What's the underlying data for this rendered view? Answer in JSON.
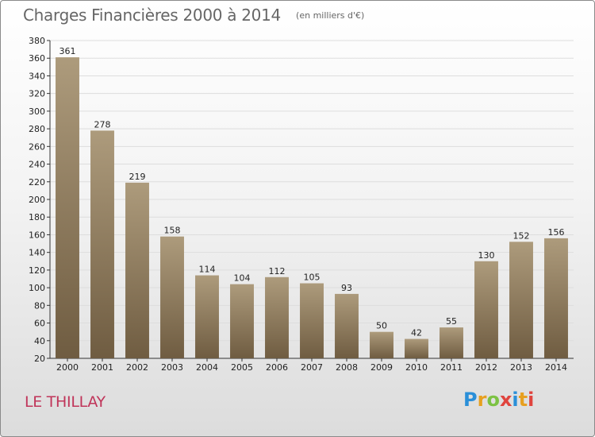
{
  "header": {
    "title": "Charges Financières 2000 à 2014",
    "subtitle": "(en milliers d'€)"
  },
  "footer": {
    "commune": "LE THILLAY",
    "logo_text": "Proxiti"
  },
  "colors": {
    "bar_top": "#ad9b7c",
    "bar_bottom": "#6f5c41",
    "grid": "#dddddd",
    "commune_text": "#c0355a"
  },
  "chart_data": {
    "type": "bar",
    "title": "Charges Financières 2000 à 2014",
    "subtitle": "(en milliers d'€)",
    "xlabel": "",
    "ylabel": "",
    "categories": [
      "2000",
      "2001",
      "2002",
      "2003",
      "2004",
      "2005",
      "2006",
      "2007",
      "2008",
      "2009",
      "2010",
      "2011",
      "2012",
      "2013",
      "2014"
    ],
    "values": [
      361,
      278,
      219,
      158,
      114,
      104,
      112,
      105,
      93,
      50,
      42,
      55,
      130,
      152,
      156
    ],
    "ylim": [
      20,
      380
    ],
    "yticks": [
      20,
      40,
      60,
      80,
      100,
      120,
      140,
      160,
      180,
      200,
      220,
      240,
      260,
      280,
      300,
      320,
      340,
      360,
      380
    ],
    "grid": true,
    "data_labels": true,
    "legend": "none"
  }
}
